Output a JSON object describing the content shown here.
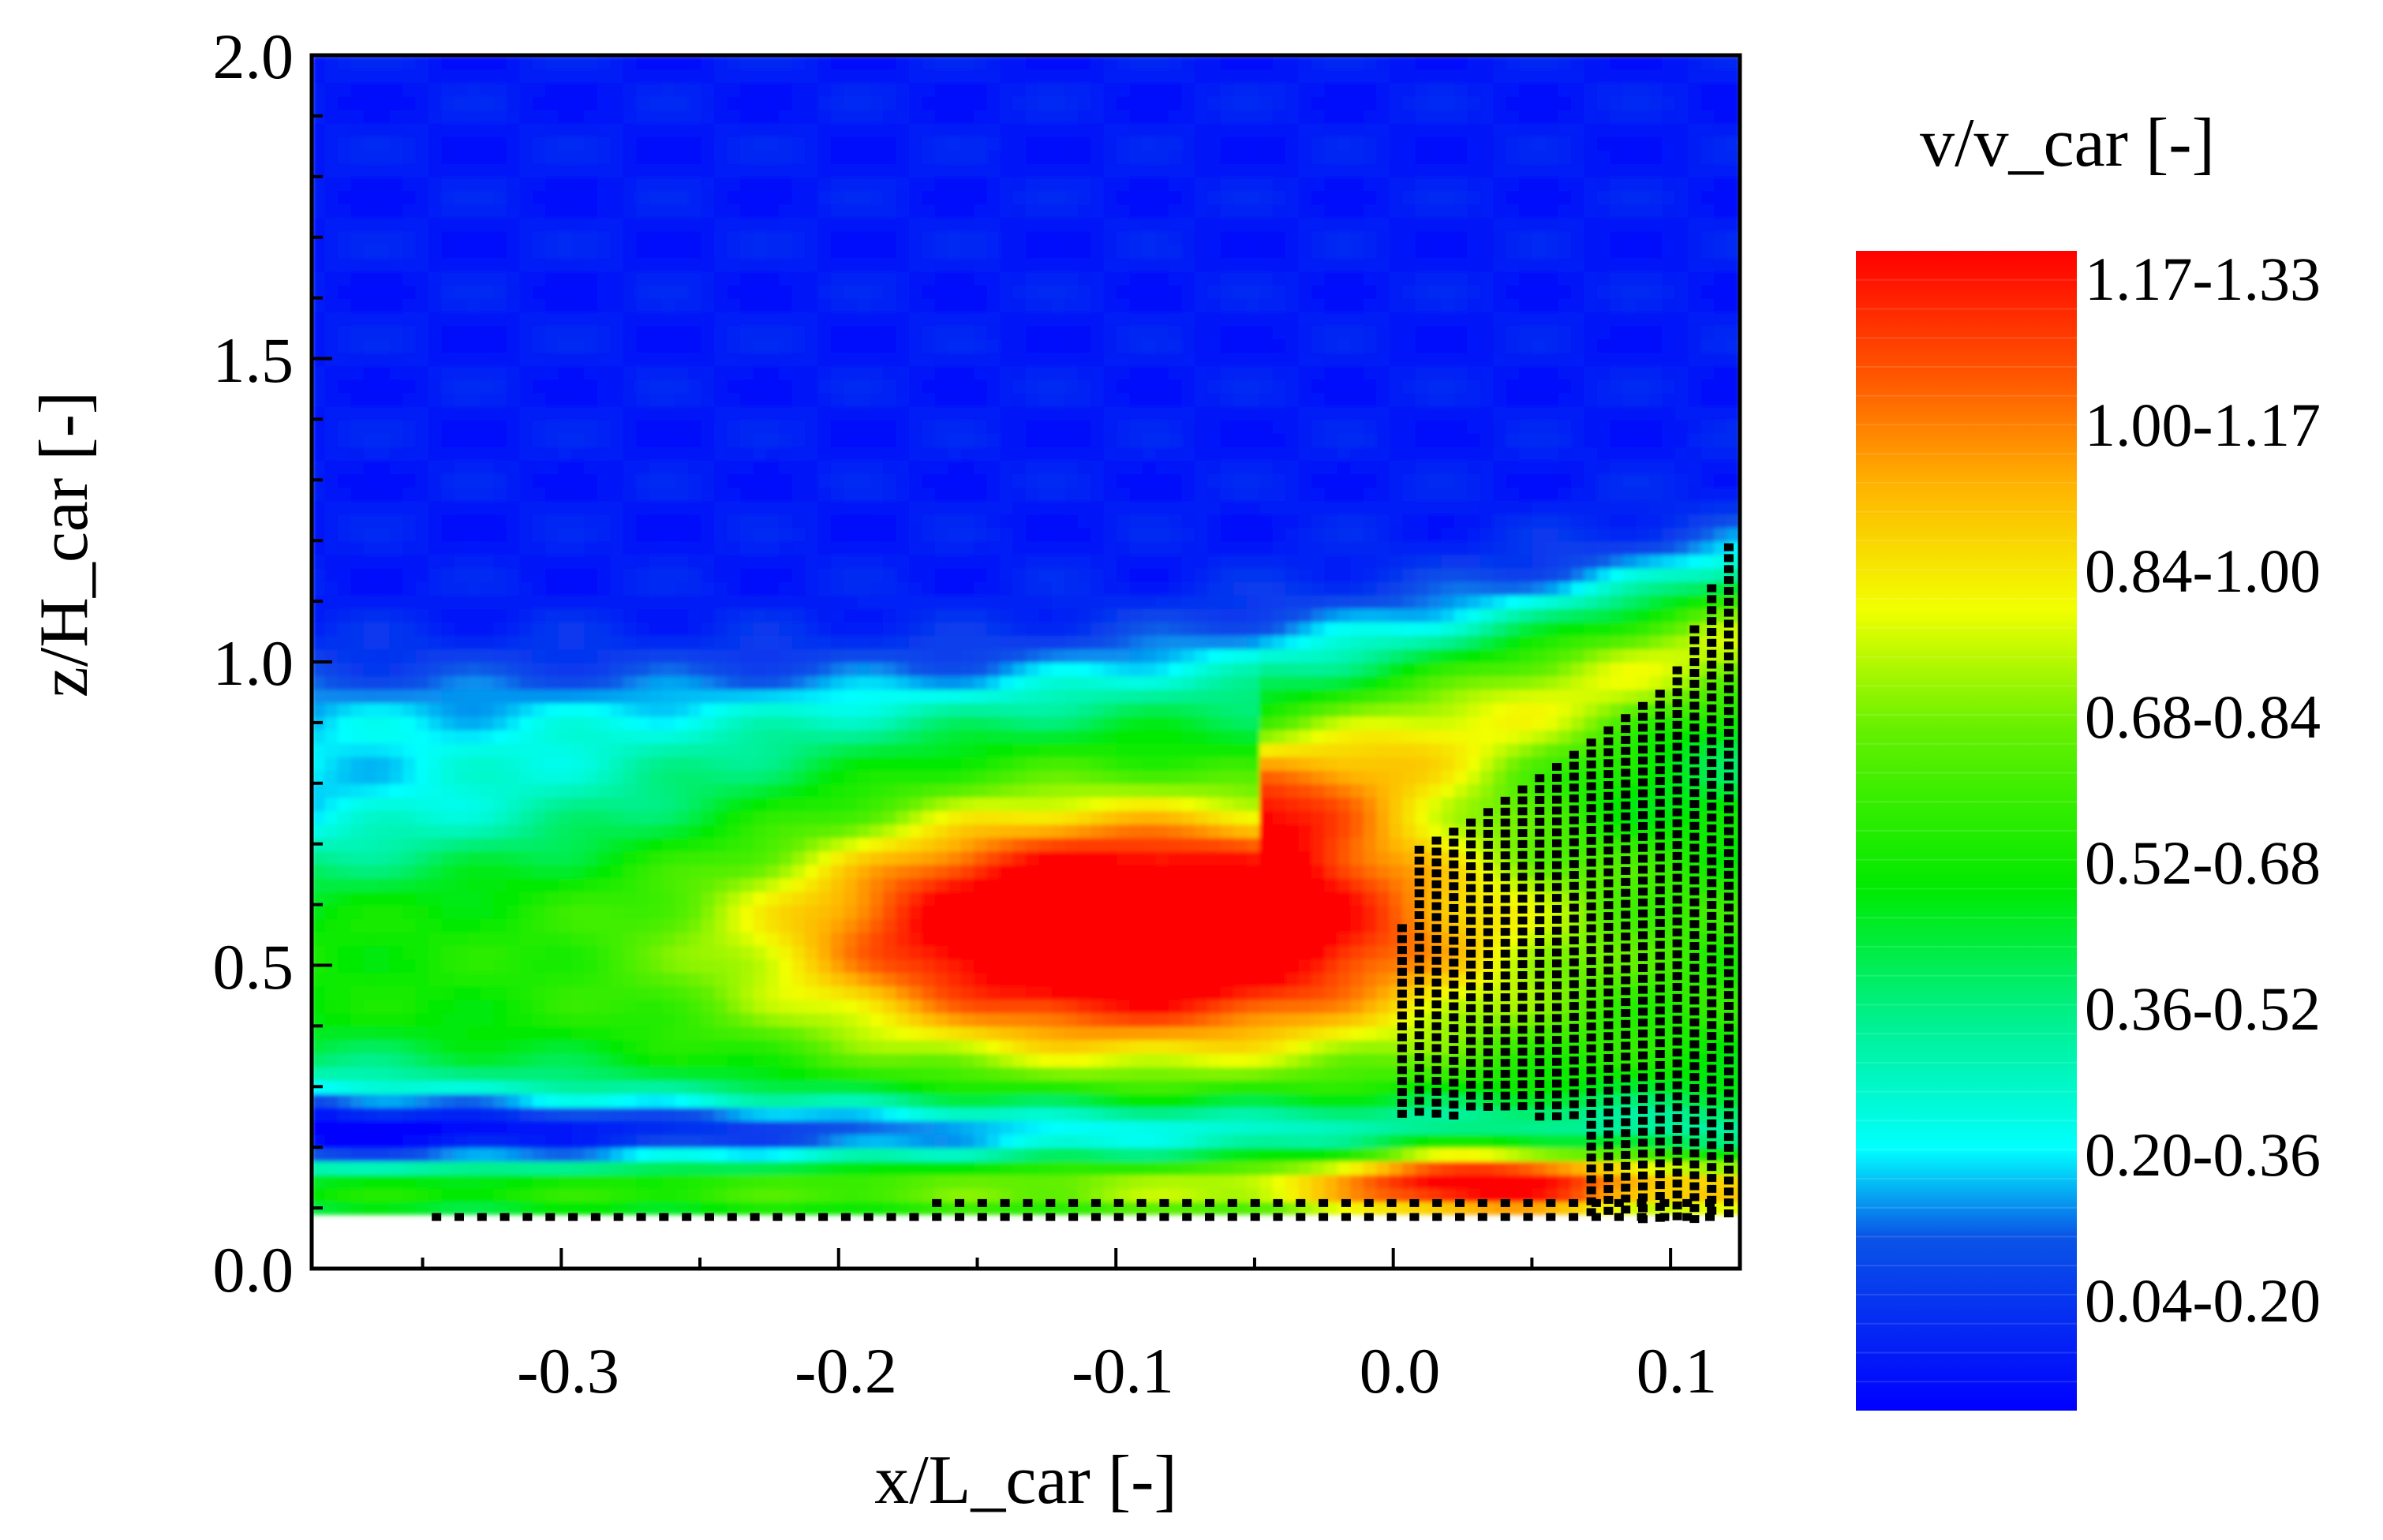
{
  "chart_data": {
    "type": "heatmap",
    "title": "",
    "xlabel": "x/L_car [-]",
    "ylabel": "z/H_car [-]",
    "xlim": [
      -0.39,
      0.125
    ],
    "ylim": [
      0.0,
      2.0
    ],
    "x_ticks": [
      -0.3,
      -0.2,
      -0.1,
      0.0,
      0.1
    ],
    "x_tick_labels": [
      "-0.3",
      "-0.2",
      "-0.1",
      "0.0",
      "0.1"
    ],
    "y_ticks": [
      0.0,
      0.5,
      1.0,
      1.5,
      2.0
    ],
    "y_tick_labels": [
      "0.0",
      "0.5",
      "1.0",
      "1.5",
      "2.0"
    ],
    "colorbar": {
      "title": "v/v_car [-]",
      "range": [
        0.0,
        1.33
      ],
      "entries": [
        "1.17-1.33",
        "1.00-1.17",
        "0.84-1.00",
        "0.68-0.84",
        "0.52-0.68",
        "0.36-0.52",
        "0.20-0.36",
        "0.04-0.20"
      ],
      "stops": [
        {
          "value": 0.0,
          "color": "#0000ff"
        },
        {
          "value": 0.2,
          "color": "#0a55e6"
        },
        {
          "value": 0.3,
          "color": "#00ffff"
        },
        {
          "value": 0.45,
          "color": "#00f08c"
        },
        {
          "value": 0.6,
          "color": "#00ea00"
        },
        {
          "value": 0.78,
          "color": "#64f000"
        },
        {
          "value": 0.92,
          "color": "#f2ff00"
        },
        {
          "value": 1.06,
          "color": "#ffb400"
        },
        {
          "value": 1.18,
          "color": "#ff5a00"
        },
        {
          "value": 1.33,
          "color": "#ff0000"
        }
      ]
    },
    "flow_region": {
      "z_min": 0.09,
      "background_value": 0.06,
      "features": [
        {
          "name": "high-speed-core",
          "x": -0.085,
          "z": 0.57,
          "sx": 0.12,
          "sz": 0.27,
          "value": 1.28
        },
        {
          "name": "wake-band",
          "x": -0.39,
          "z": 0.5,
          "sx": 0.62,
          "sz": 0.38,
          "value": 0.62
        },
        {
          "name": "lower-recirculation",
          "x": -0.24,
          "z": 0.22,
          "sx": 0.38,
          "sz": 0.06,
          "value": 0.3
        },
        {
          "name": "near-ground-layer",
          "x": -0.39,
          "z": 0.13,
          "sx": 0.8,
          "sz": 0.05,
          "value": 0.88
        },
        {
          "name": "upper-shear-layer",
          "x": -0.39,
          "z": 0.92,
          "sx": 0.8,
          "sz": 0.1,
          "value": 0.28
        },
        {
          "name": "ground-bubble",
          "x": 0.03,
          "z": 0.15,
          "sx": 0.05,
          "sz": 0.06,
          "value": 1.05
        }
      ]
    },
    "car_mask": {
      "description": "black dotted region marking car body",
      "front_profile": [
        [
          0.0,
          0.35
        ],
        [
          0.005,
          0.68
        ],
        [
          0.03,
          0.74
        ],
        [
          0.06,
          0.83
        ],
        [
          0.1,
          0.96
        ],
        [
          0.122,
          1.2
        ]
      ]
    }
  }
}
